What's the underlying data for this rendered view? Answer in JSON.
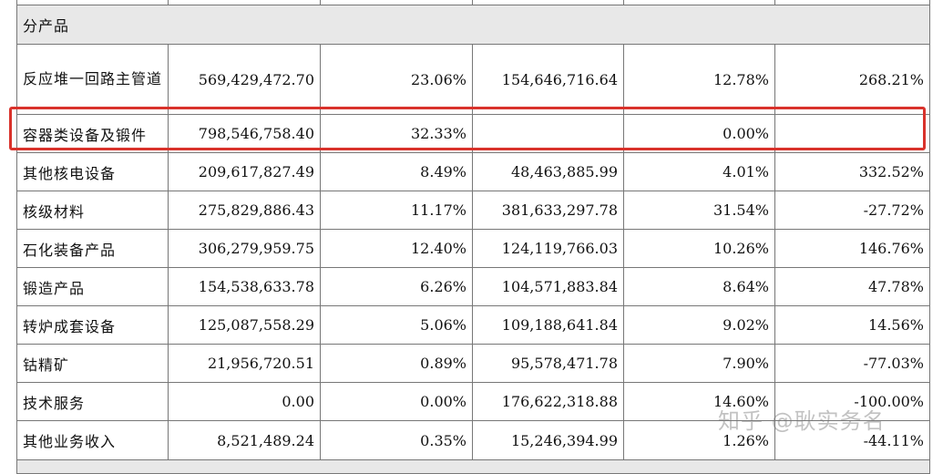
{
  "section_title": "分产品",
  "rows": [
    {
      "name": "反应堆一回路主管道",
      "v1": "569,429,472.70",
      "p1": "23.06%",
      "v2": "154,646,716.64",
      "p2": "12.78%",
      "change": "268.21%"
    },
    {
      "name": "容器类设备及锻件",
      "v1": "798,546,758.40",
      "p1": "32.33%",
      "v2": "",
      "p2": "0.00%",
      "change": ""
    },
    {
      "name": "其他核电设备",
      "v1": "209,617,827.49",
      "p1": "8.49%",
      "v2": "48,463,885.99",
      "p2": "4.01%",
      "change": "332.52%"
    },
    {
      "name": "核级材料",
      "v1": "275,829,886.43",
      "p1": "11.17%",
      "v2": "381,633,297.78",
      "p2": "31.54%",
      "change": "-27.72%"
    },
    {
      "name": "石化装备产品",
      "v1": "306,279,959.75",
      "p1": "12.40%",
      "v2": "124,119,766.03",
      "p2": "10.26%",
      "change": "146.76%"
    },
    {
      "name": "锻造产品",
      "v1": "154,538,633.78",
      "p1": "6.26%",
      "v2": "104,571,883.84",
      "p2": "8.64%",
      "change": "47.78%"
    },
    {
      "name": "转炉成套设备",
      "v1": "125,087,558.29",
      "p1": "5.06%",
      "v2": "109,188,641.84",
      "p2": "9.02%",
      "change": "14.56%"
    },
    {
      "name": "钴精矿",
      "v1": "21,956,720.51",
      "p1": "0.89%",
      "v2": "95,578,471.78",
      "p2": "7.90%",
      "change": "-77.03%"
    },
    {
      "name": "技术服务",
      "v1": "0.00",
      "p1": "0.00%",
      "v2": "176,622,318.88",
      "p2": "14.60%",
      "change": "-100.00%"
    },
    {
      "name": "其他业务收入",
      "v1": "8,521,489.24",
      "p1": "0.35%",
      "v2": "15,246,394.99",
      "p2": "1.26%",
      "change": "-44.11%"
    }
  ],
  "highlight_color": "#d9322b",
  "watermark": "知乎 @耿实务名"
}
